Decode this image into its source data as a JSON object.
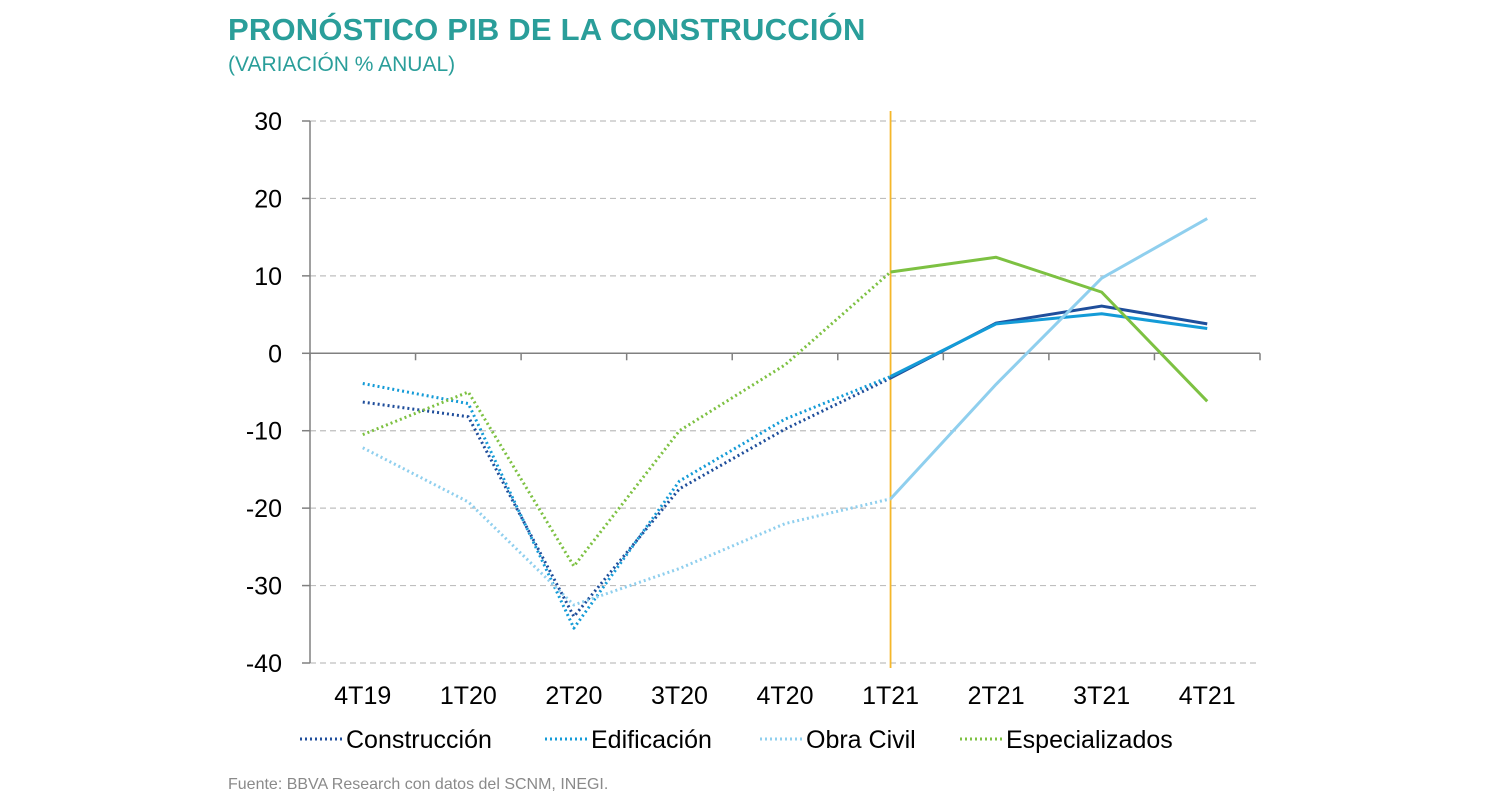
{
  "header": {
    "title": "PRONÓSTICO PIB DE LA CONSTRUCCIÓN",
    "subtitle": "(VARIACIÓN % ANUAL)"
  },
  "footer": {
    "source": "Fuente: BBVA Research con datos del SCNM, INEGI."
  },
  "chart_data": {
    "type": "line",
    "title": "PRONÓSTICO PIB DE LA CONSTRUCCIÓN",
    "subtitle": "(VARIACIÓN % ANUAL)",
    "xlabel": "",
    "ylabel": "",
    "categories": [
      "4T19",
      "1T20",
      "2T20",
      "3T20",
      "4T20",
      "1T21",
      "2T21",
      "3T21",
      "4T21"
    ],
    "ylim": [
      -40,
      30
    ],
    "yticks": [
      30,
      20,
      10,
      0,
      -10,
      -20,
      -30,
      -40
    ],
    "grid": true,
    "legend_position": "bottom",
    "forecast_marker": "1T21",
    "colors": {
      "construccion": "#1f4e9b",
      "edificacion": "#149bd7",
      "obra_civil": "#8fcfee",
      "especializados": "#7dc142",
      "forecast_line": "#f5b72a",
      "axis": "#808080",
      "grid": "#bfbfbf"
    },
    "series": [
      {
        "name": "Construcción",
        "color": "#1f4e9b",
        "values": [
          -6.3,
          -8.2,
          -34.0,
          -17.5,
          -9.8,
          -3.2,
          3.9,
          6.1,
          3.8
        ]
      },
      {
        "name": "Edificación",
        "color": "#149bd7",
        "values": [
          -3.9,
          -6.5,
          -35.5,
          -16.5,
          -8.5,
          -3.0,
          3.8,
          5.1,
          3.2
        ]
      },
      {
        "name": "Obra Civil",
        "color": "#8fcfee",
        "values": [
          -12.2,
          -19.2,
          -32.5,
          -27.8,
          -22.0,
          -18.8,
          -4.0,
          9.7,
          17.4
        ]
      },
      {
        "name": "Especializados",
        "color": "#7dc142",
        "values": [
          -10.5,
          -5.0,
          -27.5,
          -10.0,
          -1.5,
          10.5,
          12.4,
          7.9,
          -6.2
        ]
      }
    ]
  }
}
